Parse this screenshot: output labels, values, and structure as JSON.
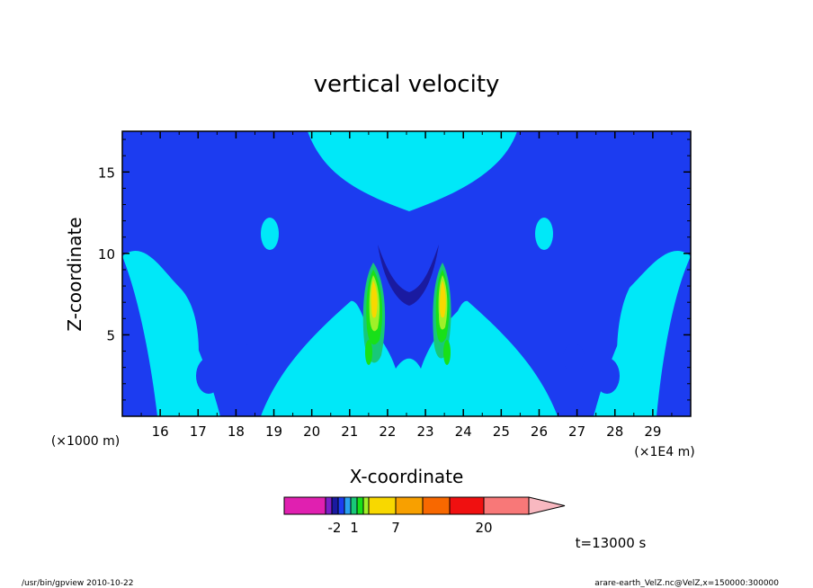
{
  "chart_data": {
    "type": "heatmap",
    "title": "vertical velocity",
    "xlabel": "X-coordinate",
    "ylabel": "Z-coordinate",
    "x_unit": "(×1E4 m)",
    "y_unit": "(×1000 m)",
    "xlim": [
      15.0,
      30.0
    ],
    "ylim": [
      0.0,
      17.5
    ],
    "x_ticks": [
      "16",
      "17",
      "18",
      "19",
      "20",
      "21",
      "22",
      "23",
      "24",
      "25",
      "26",
      "27",
      "28",
      "29"
    ],
    "y_ticks": [
      "5",
      "10",
      "15"
    ],
    "colorbar": {
      "tick_labels": [
        "-2",
        "1",
        "7",
        "20"
      ],
      "colors": [
        "#e020b0",
        "#7a20c8",
        "#1a1aa0",
        "#1c3cf0",
        "#2aa0f0",
        "#18c878",
        "#18e018",
        "#a0f028",
        "#f8d800",
        "#f8a000",
        "#f86800",
        "#f01010",
        "#f87878",
        "#f8b8c0"
      ]
    },
    "contour_colors": {
      "background": "#00e8f8",
      "weak_down": "#1c3cf0",
      "down": "#1a1aa0",
      "weak_up": "#18c878",
      "up": "#18e018",
      "mid_up": "#a0f028",
      "strong_up": "#f8d800"
    }
  },
  "annotations": {
    "time_label": "t=13000 s",
    "footer_left": "/usr/bin/gpview   2010-10-22",
    "footer_right": "arare-earth_VelZ.nc@VelZ,x=150000:300000"
  }
}
